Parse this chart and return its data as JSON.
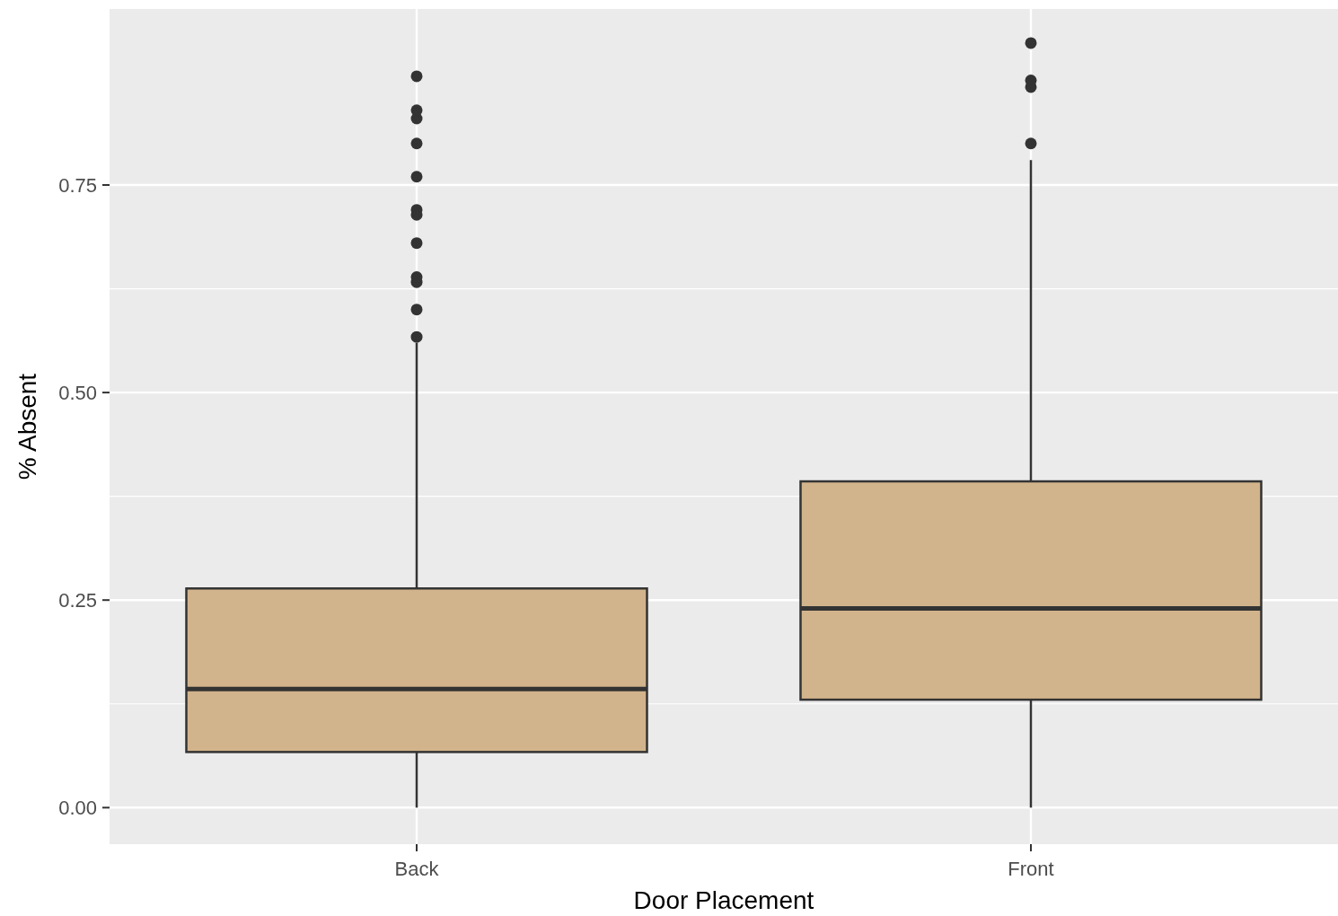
{
  "chart_data": {
    "type": "box",
    "xlabel": "Door Placement",
    "ylabel": "% Absent",
    "categories": [
      "Back",
      "Front"
    ],
    "boxes": [
      {
        "low": 0,
        "q1": 0.067,
        "median": 0.143,
        "q3": 0.264,
        "high": 0.56,
        "outliers": [
          0.567,
          0.6,
          0.633,
          0.639,
          0.68,
          0.714,
          0.72,
          0.76,
          0.8,
          0.83,
          0.84,
          0.881
        ]
      },
      {
        "low": 0,
        "q1": 0.13,
        "median": 0.24,
        "q3": 0.393,
        "high": 0.78,
        "outliers": [
          0.8,
          0.868,
          0.876,
          0.921
        ]
      }
    ],
    "color": "#d2b48c",
    "ylim": [
      -0.044,
      0.962
    ],
    "yticks": [
      {
        "value": 0,
        "label": "0.00"
      },
      {
        "value": 0.25,
        "label": "0.25"
      },
      {
        "value": 0.5,
        "label": "0.50"
      },
      {
        "value": 0.75,
        "label": "0.75"
      }
    ],
    "grid": true
  }
}
